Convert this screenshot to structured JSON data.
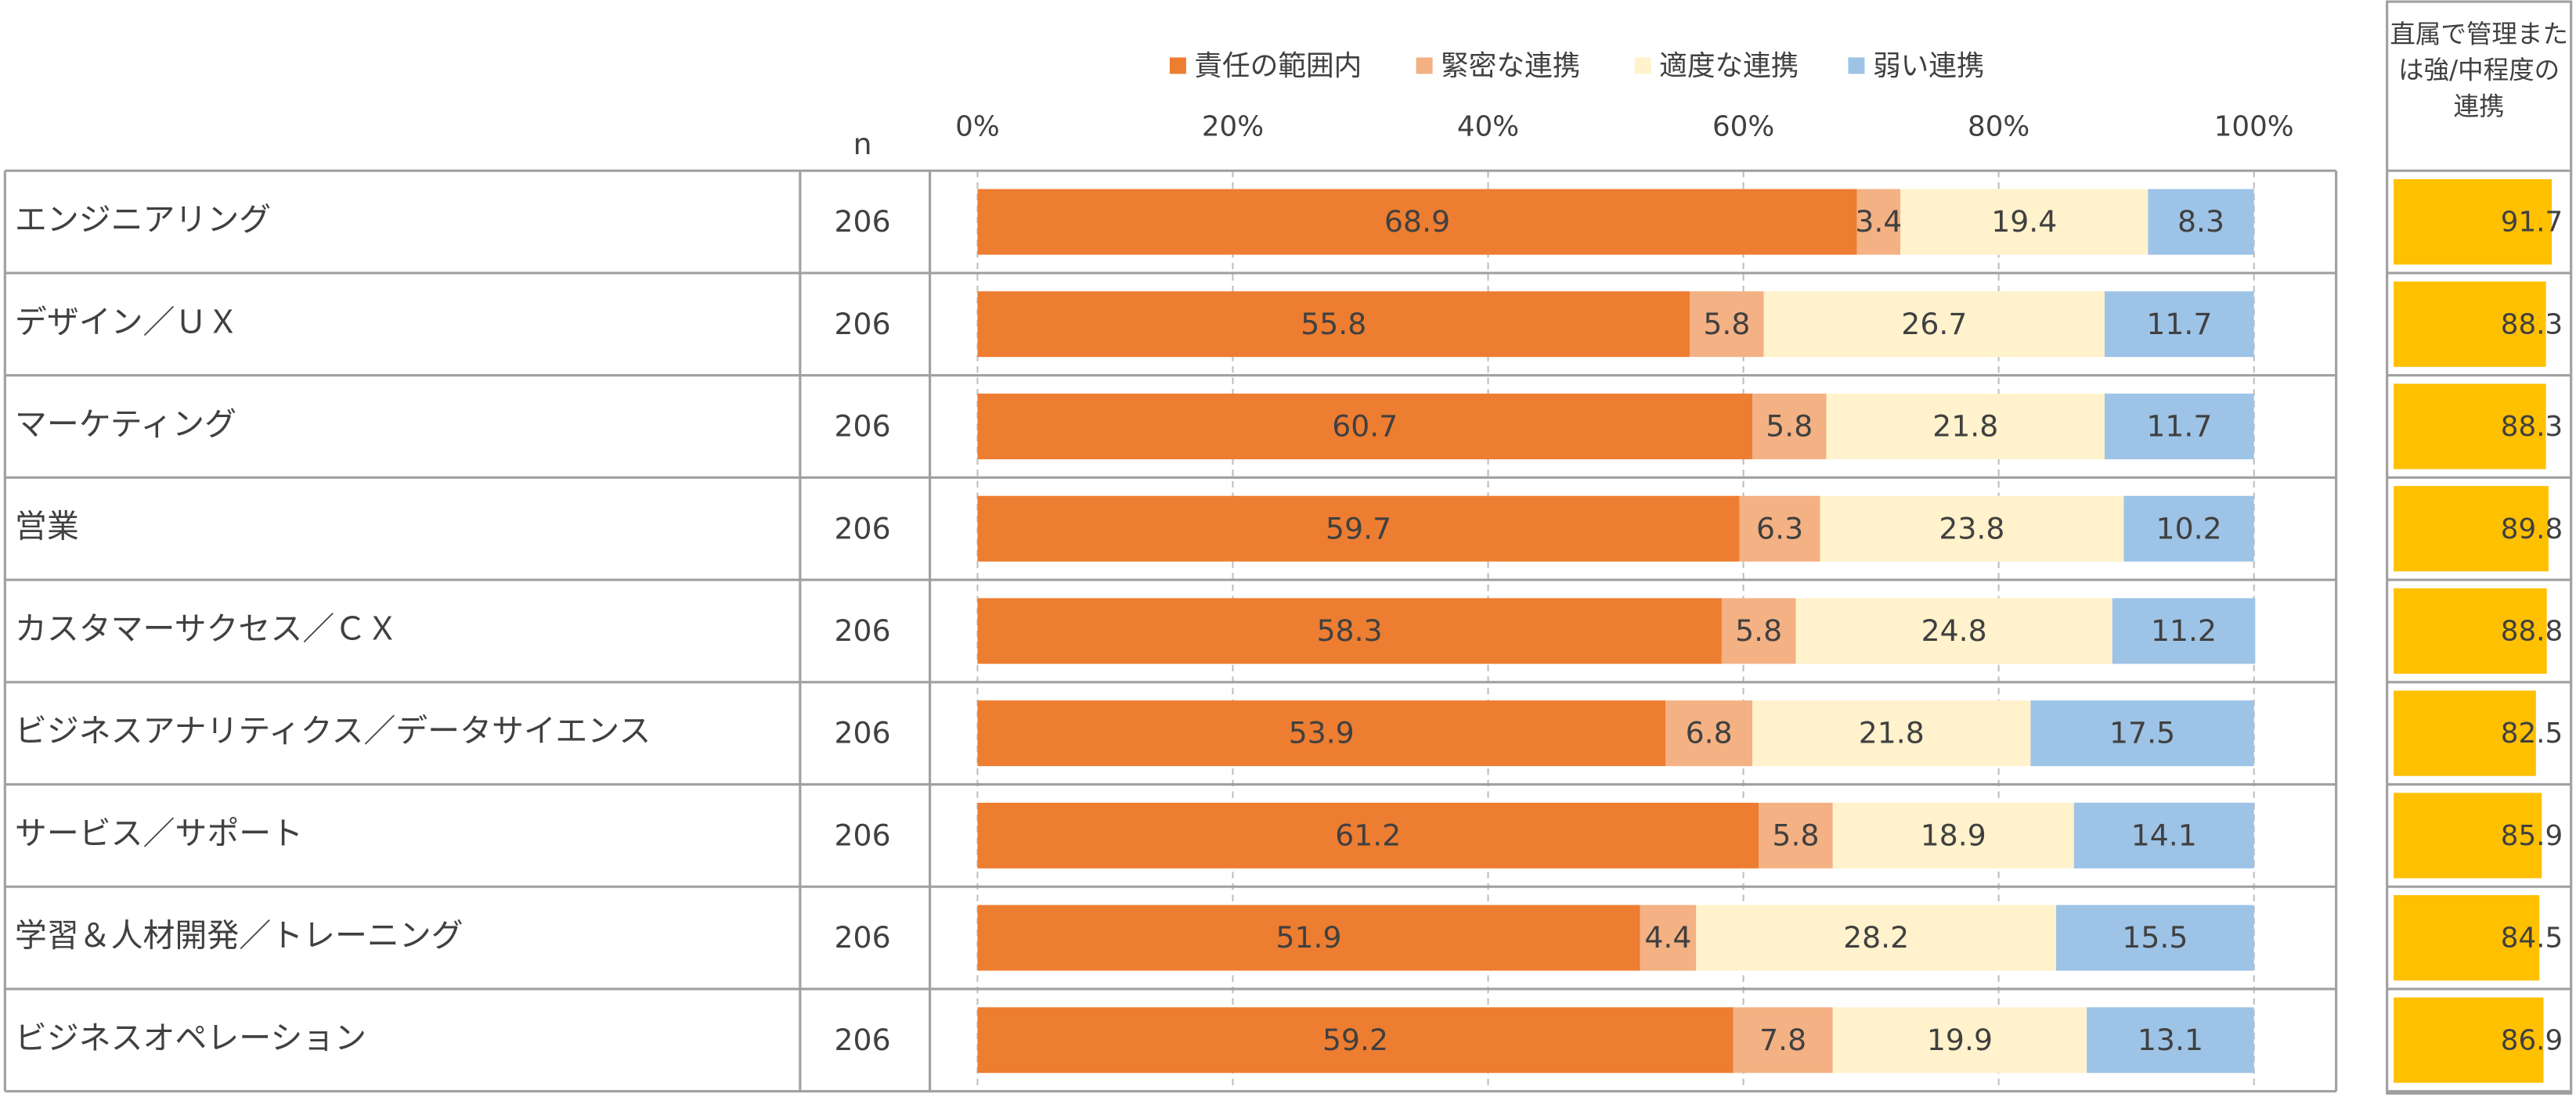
{
  "chart_data": {
    "type": "stacked-bar-horizontal",
    "n_label": "n",
    "categories": [
      "エンジニアリング",
      "デザイン／ＵＸ",
      "マーケティング",
      "営業",
      "カスタマーサクセス／ＣＸ",
      "ビジネスアナリティクス／データサイエンス",
      "サービス／サポート",
      "学習＆人材開発／トレーニング",
      "ビジネスオペレーション"
    ],
    "n_values": [
      206,
      206,
      206,
      206,
      206,
      206,
      206,
      206,
      206
    ],
    "series": [
      {
        "name": "責任の範囲内",
        "color": "#ED7D31",
        "values": [
          68.9,
          55.8,
          60.7,
          59.7,
          58.3,
          53.9,
          61.2,
          51.9,
          59.2
        ]
      },
      {
        "name": "緊密な連携",
        "color": "#F4B183",
        "values": [
          3.4,
          5.8,
          5.8,
          6.3,
          5.8,
          6.8,
          5.8,
          4.4,
          7.8
        ]
      },
      {
        "name": "適度な連携",
        "color": "#FFF2CC",
        "values": [
          19.4,
          26.7,
          21.8,
          23.8,
          24.8,
          21.8,
          18.9,
          28.2,
          19.9
        ]
      },
      {
        "name": "弱い連携",
        "color": "#9DC3E6",
        "values": [
          8.3,
          11.7,
          11.7,
          10.2,
          11.2,
          17.5,
          14.1,
          15.5,
          13.1
        ]
      }
    ],
    "xlim": [
      0,
      100
    ],
    "xticks": [
      {
        "value": 0,
        "label": "0%"
      },
      {
        "value": 20,
        "label": "20%"
      },
      {
        "value": 40,
        "label": "40%"
      },
      {
        "value": 60,
        "label": "60%"
      },
      {
        "value": 80,
        "label": "80%"
      },
      {
        "value": 100,
        "label": "100%"
      }
    ],
    "grid": true,
    "legend": "top",
    "summary": {
      "title": "直属で管理または強/中程度の連携",
      "values": [
        91.7,
        88.3,
        88.3,
        89.8,
        88.8,
        82.5,
        85.9,
        84.5,
        86.9
      ],
      "color": "#FFC000",
      "xlim": [
        0,
        100
      ]
    }
  }
}
